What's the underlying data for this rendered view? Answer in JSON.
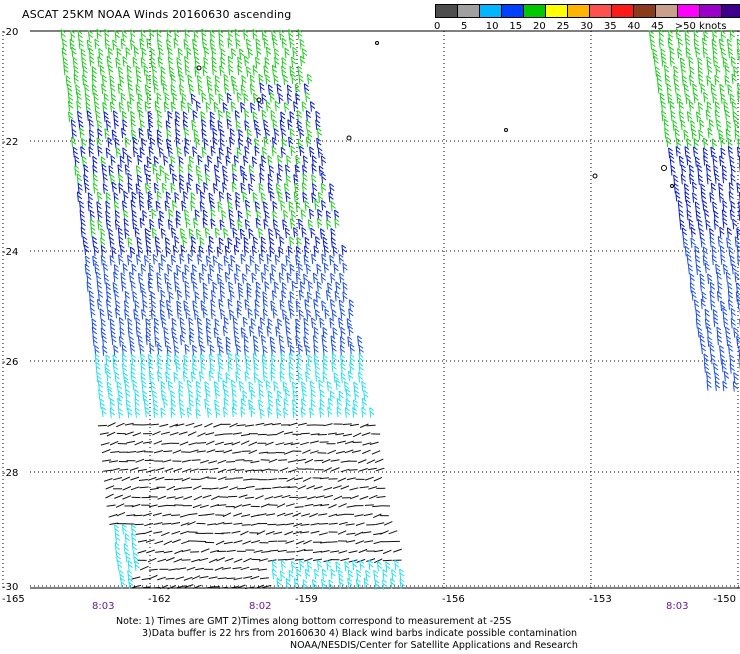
{
  "title": "ASCAT 25KM NOAA Winds 20160630 ascending",
  "legend": {
    "colors": [
      "#4d4d4d",
      "#a0a0a0",
      "#00b6ff",
      "#0040ff",
      "#00c800",
      "#ffff00",
      "#ffb400",
      "#ff5050",
      "#ff1a1a",
      "#8b3a1a",
      "#c8a08c",
      "#ff00ff",
      "#9a00c8",
      "#3c008c"
    ],
    "labels": [
      "0",
      "5",
      "10",
      "15",
      "20",
      "25",
      "30",
      "35",
      "40",
      "45",
      ">50 knots"
    ]
  },
  "map": {
    "lat_ticks": [
      "-20",
      "-22",
      "-24",
      "-26",
      "-28",
      "-30"
    ],
    "lon_ticks": [
      "-165",
      "-162",
      "-159",
      "-156",
      "-153",
      "-150"
    ],
    "time_labels": [
      "8:03",
      "8:02",
      "8:03"
    ],
    "wind_colors": {
      "green": "#22cc22",
      "blue": "#0a1ec8",
      "mid_blue": "#1e50e6",
      "light_blue": "#1ea0ff",
      "cyan": "#28e0f0",
      "black": "#111111"
    }
  },
  "notes": {
    "line1": "Note: 1) Times are GMT 2)Times along bottom correspond to measurement at -25S",
    "line2": "3)Data buffer is 22 hrs from 20160630 4) Black wind barbs indicate possible contamination",
    "line3": "NOAA/NESDIS/Center for Satellite Applications and Research"
  }
}
